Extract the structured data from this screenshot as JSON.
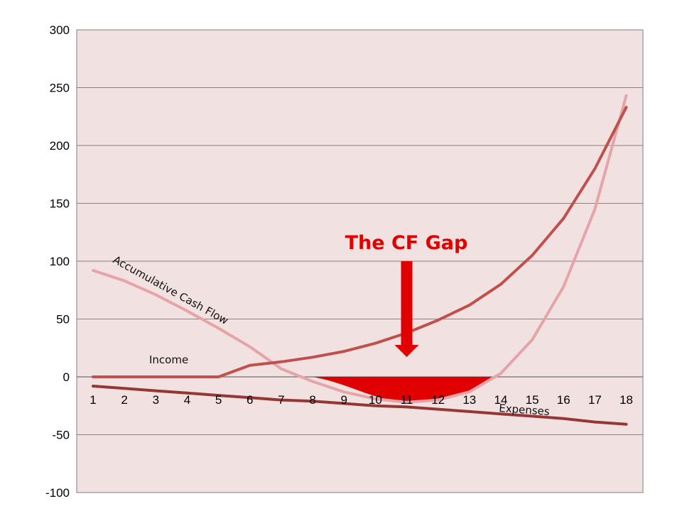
{
  "chart_data": {
    "type": "line",
    "x": [
      1,
      2,
      3,
      4,
      5,
      6,
      7,
      8,
      9,
      10,
      11,
      12,
      13,
      14,
      15,
      16,
      17,
      18
    ],
    "ylim": [
      -100,
      300
    ],
    "yticks": [
      300,
      250,
      200,
      150,
      100,
      50,
      0,
      -50,
      -100
    ],
    "grid": true,
    "series": [
      {
        "name": "Accumulative Cash Flow",
        "color": "#e4a4a8",
        "values": [
          92,
          83,
          71,
          57,
          42,
          26,
          7,
          -4,
          -13,
          -19,
          -22,
          -20,
          -13,
          3,
          32,
          78,
          145,
          243
        ]
      },
      {
        "name": "Income",
        "color": "#c0504d",
        "values": [
          0,
          0,
          0,
          0,
          0,
          10,
          13,
          17,
          22,
          29,
          38,
          49,
          62,
          80,
          105,
          137,
          180,
          233
        ]
      },
      {
        "name": "Expenses",
        "color": "#953735",
        "values": [
          -8,
          -10,
          -12,
          -14,
          -16,
          -18,
          -20,
          -21,
          -23,
          -25,
          -26,
          -28,
          -30,
          -32,
          -34,
          -36,
          -39,
          -41
        ]
      }
    ],
    "annotation": {
      "text": "The CF Gap",
      "color": "#e00000",
      "arrow_x": 11,
      "gap_from_x": 8,
      "gap_to_x": 13.7
    },
    "plot_area_color": "#f2e1e1",
    "grid_color": "#8c7f7f"
  }
}
